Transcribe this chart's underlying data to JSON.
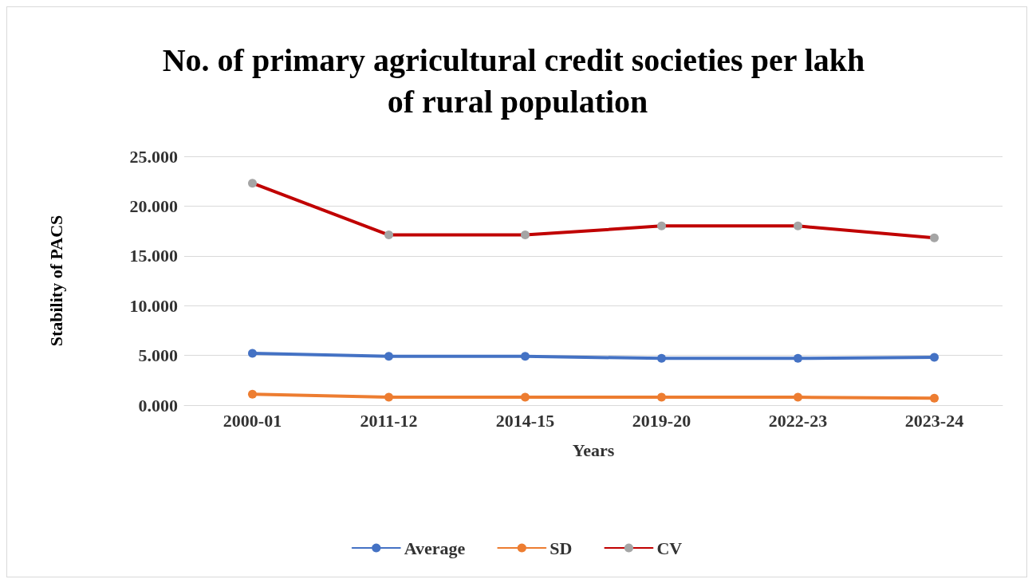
{
  "chart_data": {
    "type": "line",
    "title": "No. of primary agricultural credit societies per lakh of rural population",
    "xlabel": "Years",
    "ylabel": "Stability of PACS",
    "categories": [
      "2000-01",
      "2011-12",
      "2014-15",
      "2019-20",
      "2022-23",
      "2023-24"
    ],
    "series": [
      {
        "name": "Average",
        "color": "#4472c4",
        "values": [
          5.2,
          4.9,
          4.9,
          4.7,
          4.7,
          4.8
        ]
      },
      {
        "name": "SD",
        "color": "#ed7d31",
        "values": [
          1.1,
          0.8,
          0.8,
          0.8,
          0.8,
          0.7
        ]
      },
      {
        "name": "CV",
        "color": "#c00000",
        "colors": [
          "#a5a5a5",
          "#a5a5a5",
          "#a5a5a5",
          "#a5a5a5",
          "#a5a5a5",
          "#a5a5a5"
        ],
        "values": [
          22.3,
          17.1,
          17.1,
          18.0,
          18.0,
          16.8
        ]
      }
    ],
    "ylim": [
      0,
      25
    ],
    "yticks": [
      {
        "value": 0,
        "label": "0.000"
      },
      {
        "value": 5,
        "label": "5.000"
      },
      {
        "value": 10,
        "label": "10.000"
      },
      {
        "value": 15,
        "label": "15.000"
      },
      {
        "value": 20,
        "label": "20.000"
      },
      {
        "value": 25,
        "label": "25.000"
      }
    ],
    "grid": "y",
    "legend": "bottom",
    "marker": "circle",
    "line_style": "solid"
  }
}
